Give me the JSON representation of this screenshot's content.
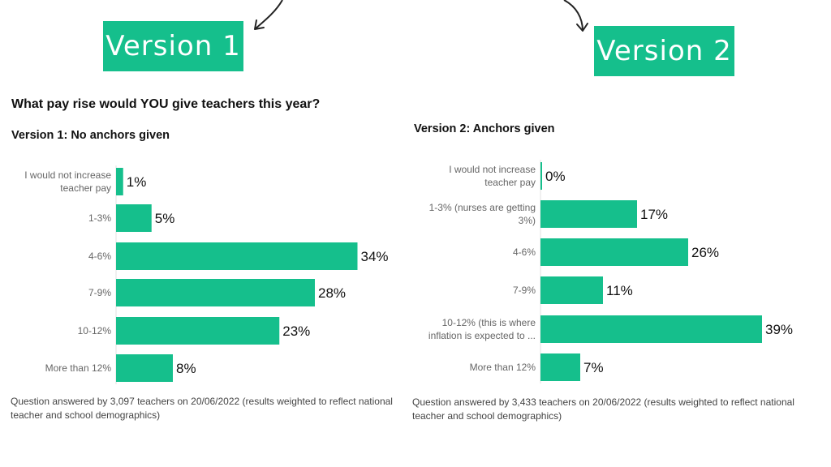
{
  "labels": {
    "version1": "Version 1",
    "version2": "Version 2"
  },
  "title": "What pay rise would YOU give teachers this year?",
  "colors": {
    "bar": "#15bf8c",
    "tag": "#15bf8c"
  },
  "chart_data": [
    {
      "type": "bar",
      "orientation": "horizontal",
      "title": "Version 1: No anchors given",
      "categories": [
        [
          "I would not increase",
          "teacher pay"
        ],
        [
          "1-3%"
        ],
        [
          "4-6%"
        ],
        [
          "7-9%"
        ],
        [
          "10-12%"
        ],
        [
          "More than 12%"
        ]
      ],
      "values": [
        1,
        5,
        34,
        28,
        23,
        8
      ],
      "value_labels": [
        "1%",
        "5%",
        "34%",
        "28%",
        "23%",
        "8%"
      ],
      "footnote": "Question answered by 3,097 teachers on 20/06/2022 (results weighted to reflect national teacher and school demographics)"
    },
    {
      "type": "bar",
      "orientation": "horizontal",
      "title": "Version 2: Anchors given",
      "categories": [
        [
          "I would not increase",
          "teacher pay"
        ],
        [
          "1-3% (nurses are getting",
          "3%)"
        ],
        [
          "4-6%"
        ],
        [
          "7-9%"
        ],
        [
          "10-12% (this is where",
          "inflation is expected to ..."
        ],
        [
          "More than 12%"
        ]
      ],
      "values": [
        0,
        17,
        26,
        11,
        39,
        7
      ],
      "value_labels": [
        "0%",
        "17%",
        "26%",
        "11%",
        "39%",
        "7%"
      ],
      "footnote": "Question answered by 3,433 teachers on 20/06/2022 (results weighted to reflect national teacher and school demographics)"
    }
  ]
}
